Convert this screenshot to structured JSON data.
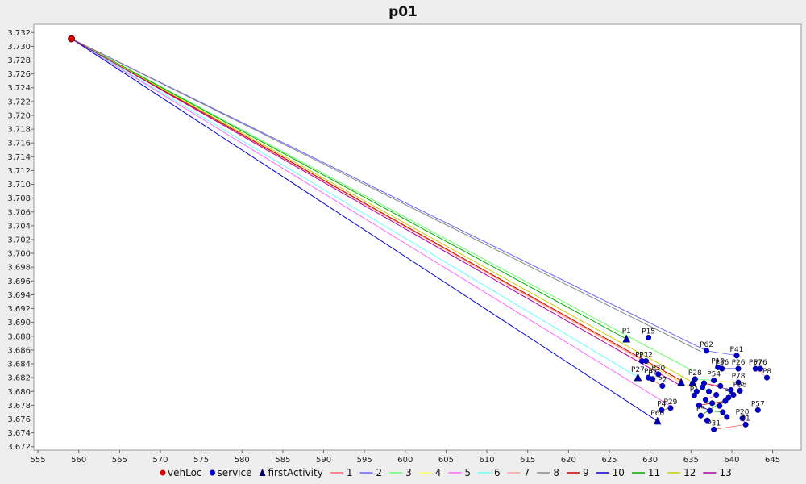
{
  "chart_data": {
    "type": "scatter",
    "title": "p01",
    "xlim": [
      554.5,
      648.5
    ],
    "ylim": [
      3.6715,
      3.7332
    ],
    "x_ticks": [
      555,
      560,
      565,
      570,
      575,
      580,
      585,
      590,
      595,
      600,
      605,
      610,
      615,
      620,
      625,
      630,
      635,
      640,
      645
    ],
    "y_ticks": [
      3.672,
      3.674,
      3.676,
      3.678,
      3.68,
      3.682,
      3.684,
      3.686,
      3.688,
      3.69,
      3.692,
      3.694,
      3.696,
      3.698,
      3.7,
      3.702,
      3.704,
      3.706,
      3.708,
      3.71,
      3.712,
      3.714,
      3.716,
      3.718,
      3.72,
      3.722,
      3.724,
      3.726,
      3.728,
      3.73,
      3.732
    ],
    "x_tick_labels": [
      "555",
      "560",
      "565",
      "570",
      "575",
      "580",
      "585",
      "590",
      "595",
      "600",
      "605",
      "610",
      "615",
      "620",
      "625",
      "630",
      "635",
      "640",
      "645"
    ],
    "y_tick_labels": [
      "3.672",
      "3.674",
      "3.676",
      "3.678",
      "3.680",
      "3.682",
      "3.684",
      "3.686",
      "3.688",
      "3.690",
      "3.692",
      "3.694",
      "3.696",
      "3.698",
      "3.700",
      "3.702",
      "3.704",
      "3.706",
      "3.708",
      "3.710",
      "3.712",
      "3.714",
      "3.716",
      "3.718",
      "3.720",
      "3.722",
      "3.724",
      "3.726",
      "3.728",
      "3.730",
      "3.732"
    ],
    "vehLoc": {
      "x": 559.1,
      "y": 3.7311
    },
    "first_activities": [
      {
        "label": "P1",
        "x": 627.1,
        "y": 3.6876
      },
      {
        "label": "P27",
        "x": 628.5,
        "y": 3.682
      },
      {
        "label": "P60",
        "x": 630.9,
        "y": 3.6757
      },
      {
        "label": "",
        "x": 633.8,
        "y": 3.6813
      },
      {
        "label": "",
        "x": 635.2,
        "y": 3.6813
      }
    ],
    "services": [
      {
        "label": "P15",
        "x": 629.8,
        "y": 3.6878
      },
      {
        "label": "P62",
        "x": 636.9,
        "y": 3.6859
      },
      {
        "label": "P41",
        "x": 640.6,
        "y": 3.6852
      },
      {
        "label": "P21",
        "x": 629.0,
        "y": 3.6844
      },
      {
        "label": "P12",
        "x": 629.5,
        "y": 3.6844
      },
      {
        "label": "P76",
        "x": 643.5,
        "y": 3.6833
      },
      {
        "label": "P57",
        "x": 642.9,
        "y": 3.6833
      },
      {
        "label": "P8",
        "x": 644.3,
        "y": 3.682
      },
      {
        "label": "P10",
        "x": 638.3,
        "y": 3.6835
      },
      {
        "label": "P36",
        "x": 638.8,
        "y": 3.6833
      },
      {
        "label": "P26",
        "x": 640.8,
        "y": 3.6833
      },
      {
        "label": "P30",
        "x": 631.0,
        "y": 3.6825
      },
      {
        "label": "P7",
        "x": 630.3,
        "y": 3.6818
      },
      {
        "label": "P3",
        "x": 629.8,
        "y": 3.682
      },
      {
        "label": "P2",
        "x": 631.5,
        "y": 3.6808
      },
      {
        "label": "P28",
        "x": 635.5,
        "y": 3.6818
      },
      {
        "label": "P54",
        "x": 637.8,
        "y": 3.6816
      },
      {
        "label": "P78",
        "x": 640.8,
        "y": 3.6813
      },
      {
        "label": "P58",
        "x": 641.0,
        "y": 3.6801
      },
      {
        "label": "P1",
        "x": 635.4,
        "y": 3.6794
      },
      {
        "label": "P4",
        "x": 631.4,
        "y": 3.6773
      },
      {
        "label": "P29",
        "x": 632.5,
        "y": 3.6776
      },
      {
        "label": "P57",
        "x": 643.2,
        "y": 3.6773
      },
      {
        "label": "P5",
        "x": 636.2,
        "y": 3.6765
      },
      {
        "label": "P5",
        "x": 639.6,
        "y": 3.6791
      },
      {
        "label": "P20",
        "x": 641.3,
        "y": 3.6761
      },
      {
        "label": "P1",
        "x": 641.7,
        "y": 3.6752
      },
      {
        "label": "P31",
        "x": 637.8,
        "y": 3.6745
      },
      {
        "label": "",
        "x": 636.4,
        "y": 3.6806
      },
      {
        "label": "",
        "x": 637.2,
        "y": 3.68
      },
      {
        "label": "",
        "x": 638.1,
        "y": 3.6795
      },
      {
        "label": "",
        "x": 636.8,
        "y": 3.6788
      },
      {
        "label": "",
        "x": 637.6,
        "y": 3.6783
      },
      {
        "label": "",
        "x": 638.5,
        "y": 3.6779
      },
      {
        "label": "",
        "x": 639.2,
        "y": 3.6786
      },
      {
        "label": "",
        "x": 636.0,
        "y": 3.678
      },
      {
        "label": "",
        "x": 637.3,
        "y": 3.6772
      },
      {
        "label": "",
        "x": 638.9,
        "y": 3.677
      },
      {
        "label": "",
        "x": 639.9,
        "y": 3.6802
      },
      {
        "label": "",
        "x": 636.6,
        "y": 3.6812
      },
      {
        "label": "",
        "x": 638.6,
        "y": 3.6808
      },
      {
        "label": "",
        "x": 640.2,
        "y": 3.6795
      },
      {
        "label": "",
        "x": 637.0,
        "y": 3.6758
      },
      {
        "label": "",
        "x": 639.4,
        "y": 3.6763
      },
      {
        "label": "",
        "x": 635.7,
        "y": 3.68
      }
    ],
    "routes": [
      {
        "name": "1",
        "color": "#ff6666",
        "end_x": 633.8,
        "end_y": 3.6813
      },
      {
        "name": "2",
        "color": "#6666ff",
        "end_x": 636.9,
        "end_y": 3.6859
      },
      {
        "name": "3",
        "color": "#66ff66",
        "end_x": 635.2,
        "end_y": 3.683
      },
      {
        "name": "4",
        "color": "#ffff66",
        "end_x": 634.9,
        "end_y": 3.6806
      },
      {
        "name": "5",
        "color": "#ff66ff",
        "end_x": 632.6,
        "end_y": 3.6778
      },
      {
        "name": "6",
        "color": "#66ffff",
        "end_x": 628.6,
        "end_y": 3.682
      },
      {
        "name": "7",
        "color": "#ffa0a0",
        "end_x": 629.4,
        "end_y": 3.6843
      },
      {
        "name": "8",
        "color": "#888888",
        "end_x": 636.2,
        "end_y": 3.6858
      },
      {
        "name": "9",
        "color": "#cc0000",
        "end_x": 633.9,
        "end_y": 3.6815
      },
      {
        "name": "10",
        "color": "#0000cc",
        "end_x": 630.9,
        "end_y": 3.6757
      },
      {
        "name": "11",
        "color": "#00aa00",
        "end_x": 627.1,
        "end_y": 3.6876
      },
      {
        "name": "12",
        "color": "#cccc00",
        "end_x": 635.4,
        "end_y": 3.6812
      },
      {
        "name": "13",
        "color": "#aa00aa",
        "end_x": 633.5,
        "end_y": 3.681
      }
    ],
    "legend": {
      "position": "bottom",
      "entries": [
        "vehLoc",
        "service",
        "firstActivity",
        "1",
        "2",
        "3",
        "4",
        "5",
        "6",
        "7",
        "8",
        "9",
        "10",
        "11",
        "12",
        "13"
      ]
    },
    "grid": false
  }
}
